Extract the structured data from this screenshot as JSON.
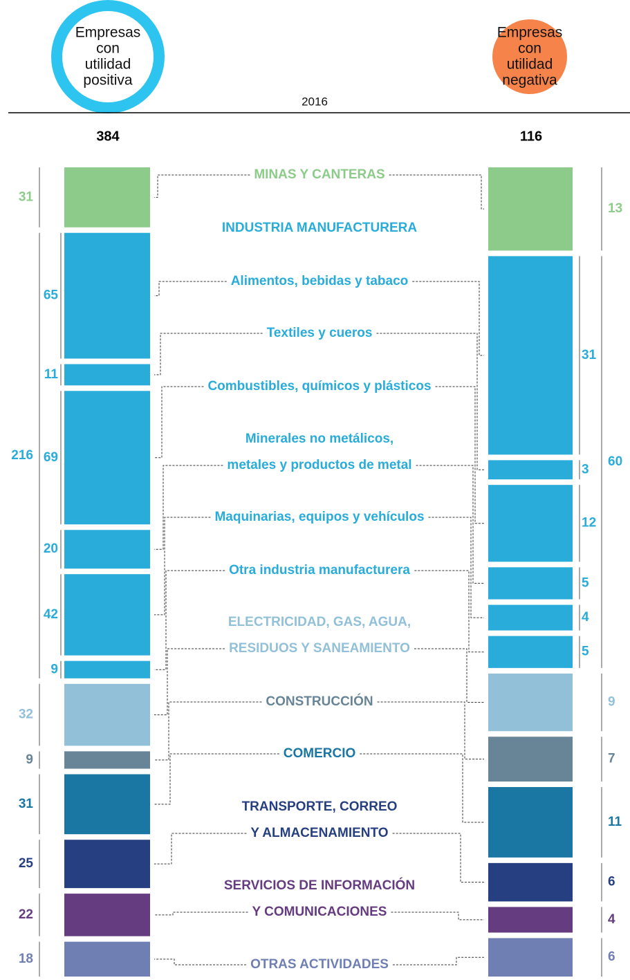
{
  "chart_data": {
    "type": "paired-stacked-columns",
    "year": "2016",
    "left": {
      "title": [
        "Empresas",
        "con",
        "utilidad",
        "positiva"
      ],
      "total": 384,
      "color": "#2ec4f0"
    },
    "right": {
      "title": [
        "Empresas",
        "con",
        "utilidad",
        "negativa"
      ],
      "total": 116,
      "color": "#f5834a"
    },
    "sectors": [
      {
        "name": [
          "MINAS Y CANTERAS"
        ],
        "color": "#8dcb8a",
        "left": 31,
        "right": 13
      },
      {
        "name": [
          "INDUSTRIA MANUFACTURERA"
        ],
        "color": "#29acd9",
        "left": 216,
        "right": 60,
        "sub": [
          {
            "name": [
              "Alimentos, bebidas y tabaco"
            ],
            "left": 65,
            "right": 31
          },
          {
            "name": [
              "Textiles y cueros"
            ],
            "left": 11,
            "right": 3
          },
          {
            "name": [
              "Combustibles, químicos y plásticos"
            ],
            "left": 69,
            "right": 12
          },
          {
            "name": [
              "Minerales no metálicos,",
              "metales y productos de metal"
            ],
            "left": 20,
            "right": 5
          },
          {
            "name": [
              "Maquinarias, equipos y vehículos"
            ],
            "left": 42,
            "right": 4
          },
          {
            "name": [
              "Otra industria manufacturera"
            ],
            "left": 9,
            "right": 5
          }
        ]
      },
      {
        "name": [
          "ELECTRICIDAD, GAS, AGUA,",
          "RESIDUOS Y SANEAMIENTO"
        ],
        "color": "#92c0d9",
        "left": 32,
        "right": 9
      },
      {
        "name": [
          "CONSTRUCCIÓN"
        ],
        "color": "#688597",
        "left": 9,
        "right": 7
      },
      {
        "name": [
          "COMERCIO"
        ],
        "color": "#1a76a3",
        "left": 31,
        "right": 11
      },
      {
        "name": [
          "TRANSPORTE, CORREO",
          "Y ALMACENAMIENTO"
        ],
        "color": "#263f80",
        "left": 25,
        "right": 6
      },
      {
        "name": [
          "SERVICIOS DE INFORMACIÓN",
          "Y COMUNICACIONES"
        ],
        "color": "#663c80",
        "left": 22,
        "right": 4
      },
      {
        "name": [
          "OTRAS ACTIVIDADES"
        ],
        "color": "#6f7fb3",
        "left": 18,
        "right": 6
      }
    ]
  }
}
